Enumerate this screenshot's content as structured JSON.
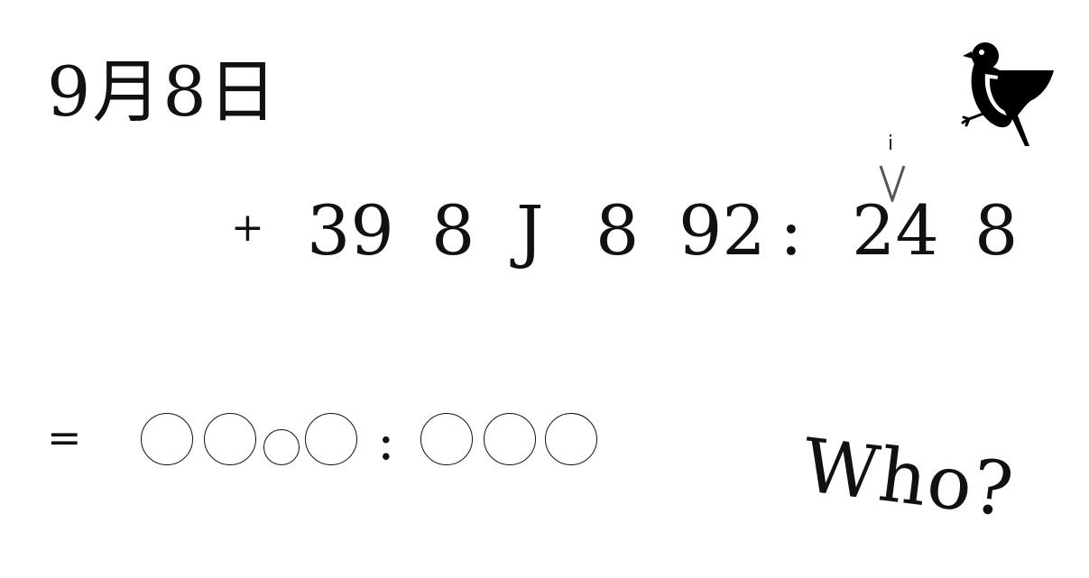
{
  "date": "9月8日",
  "puzzle": {
    "operator": "+",
    "tokens": [
      "39",
      "8",
      "J",
      "8",
      "92",
      ":",
      "24",
      "8"
    ],
    "caret_label": "i"
  },
  "answer": {
    "operator": "=",
    "separator": ":"
  },
  "question": "Who?",
  "icons": {
    "bird": "bird-icon",
    "caret": "caret-icon"
  },
  "colors": {
    "ink": "#111111",
    "caret": "#555555",
    "background": "#ffffff"
  }
}
